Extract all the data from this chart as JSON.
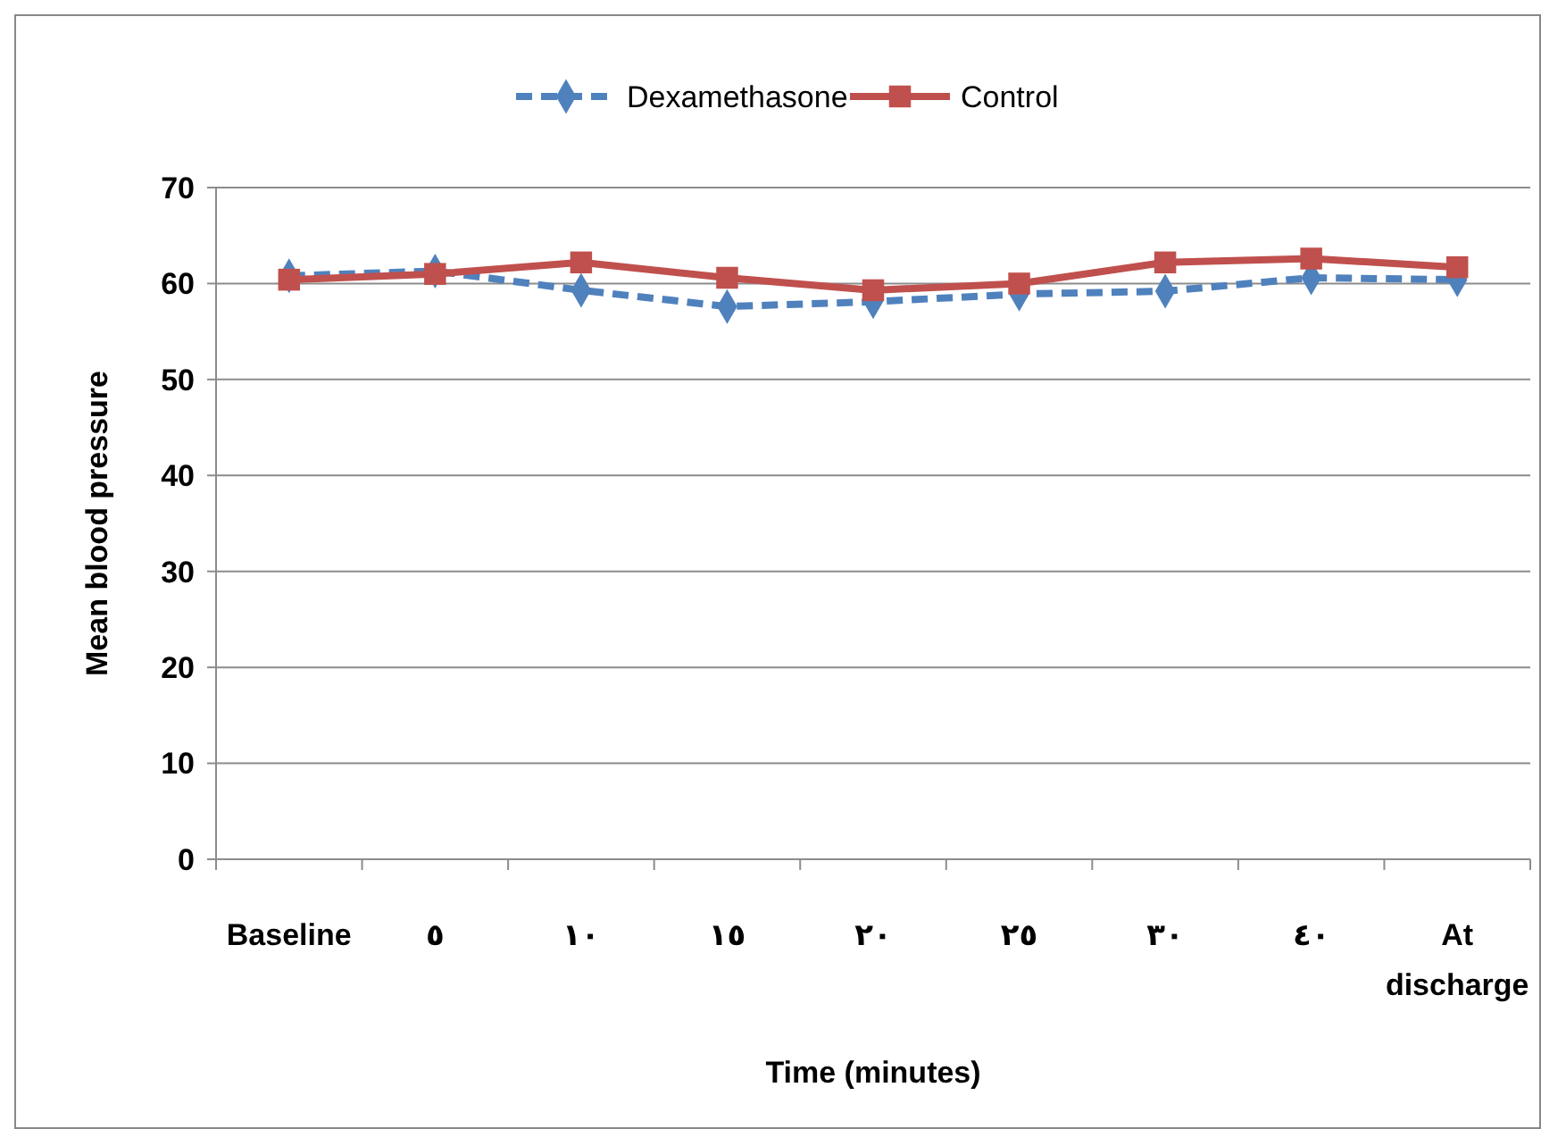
{
  "chart_data": {
    "type": "line",
    "xlabel": "Time (minutes)",
    "ylabel": "Mean blood pressure",
    "categories": [
      "Baseline",
      "٥",
      "١٠",
      "١٥",
      "٢٠",
      "٢٥",
      "٣٠",
      "٤٠",
      "At discharge"
    ],
    "series": [
      {
        "name": "Dexamethasone",
        "color": "#4f81bd",
        "marker": "diamond",
        "line_style": "dashed",
        "values": [
          60.8,
          61.3,
          59.3,
          57.6,
          58.1,
          58.9,
          59.2,
          60.6,
          60.4
        ]
      },
      {
        "name": "Control",
        "color": "#c0504d",
        "marker": "square",
        "line_style": "solid",
        "values": [
          60.4,
          61.0,
          62.2,
          60.6,
          59.3,
          60.0,
          62.2,
          62.6,
          61.7
        ]
      }
    ],
    "ylim": [
      0,
      70
    ],
    "yticks": [
      0,
      10,
      20,
      30,
      40,
      50,
      60,
      70
    ],
    "grid": "y",
    "legend": "top"
  }
}
